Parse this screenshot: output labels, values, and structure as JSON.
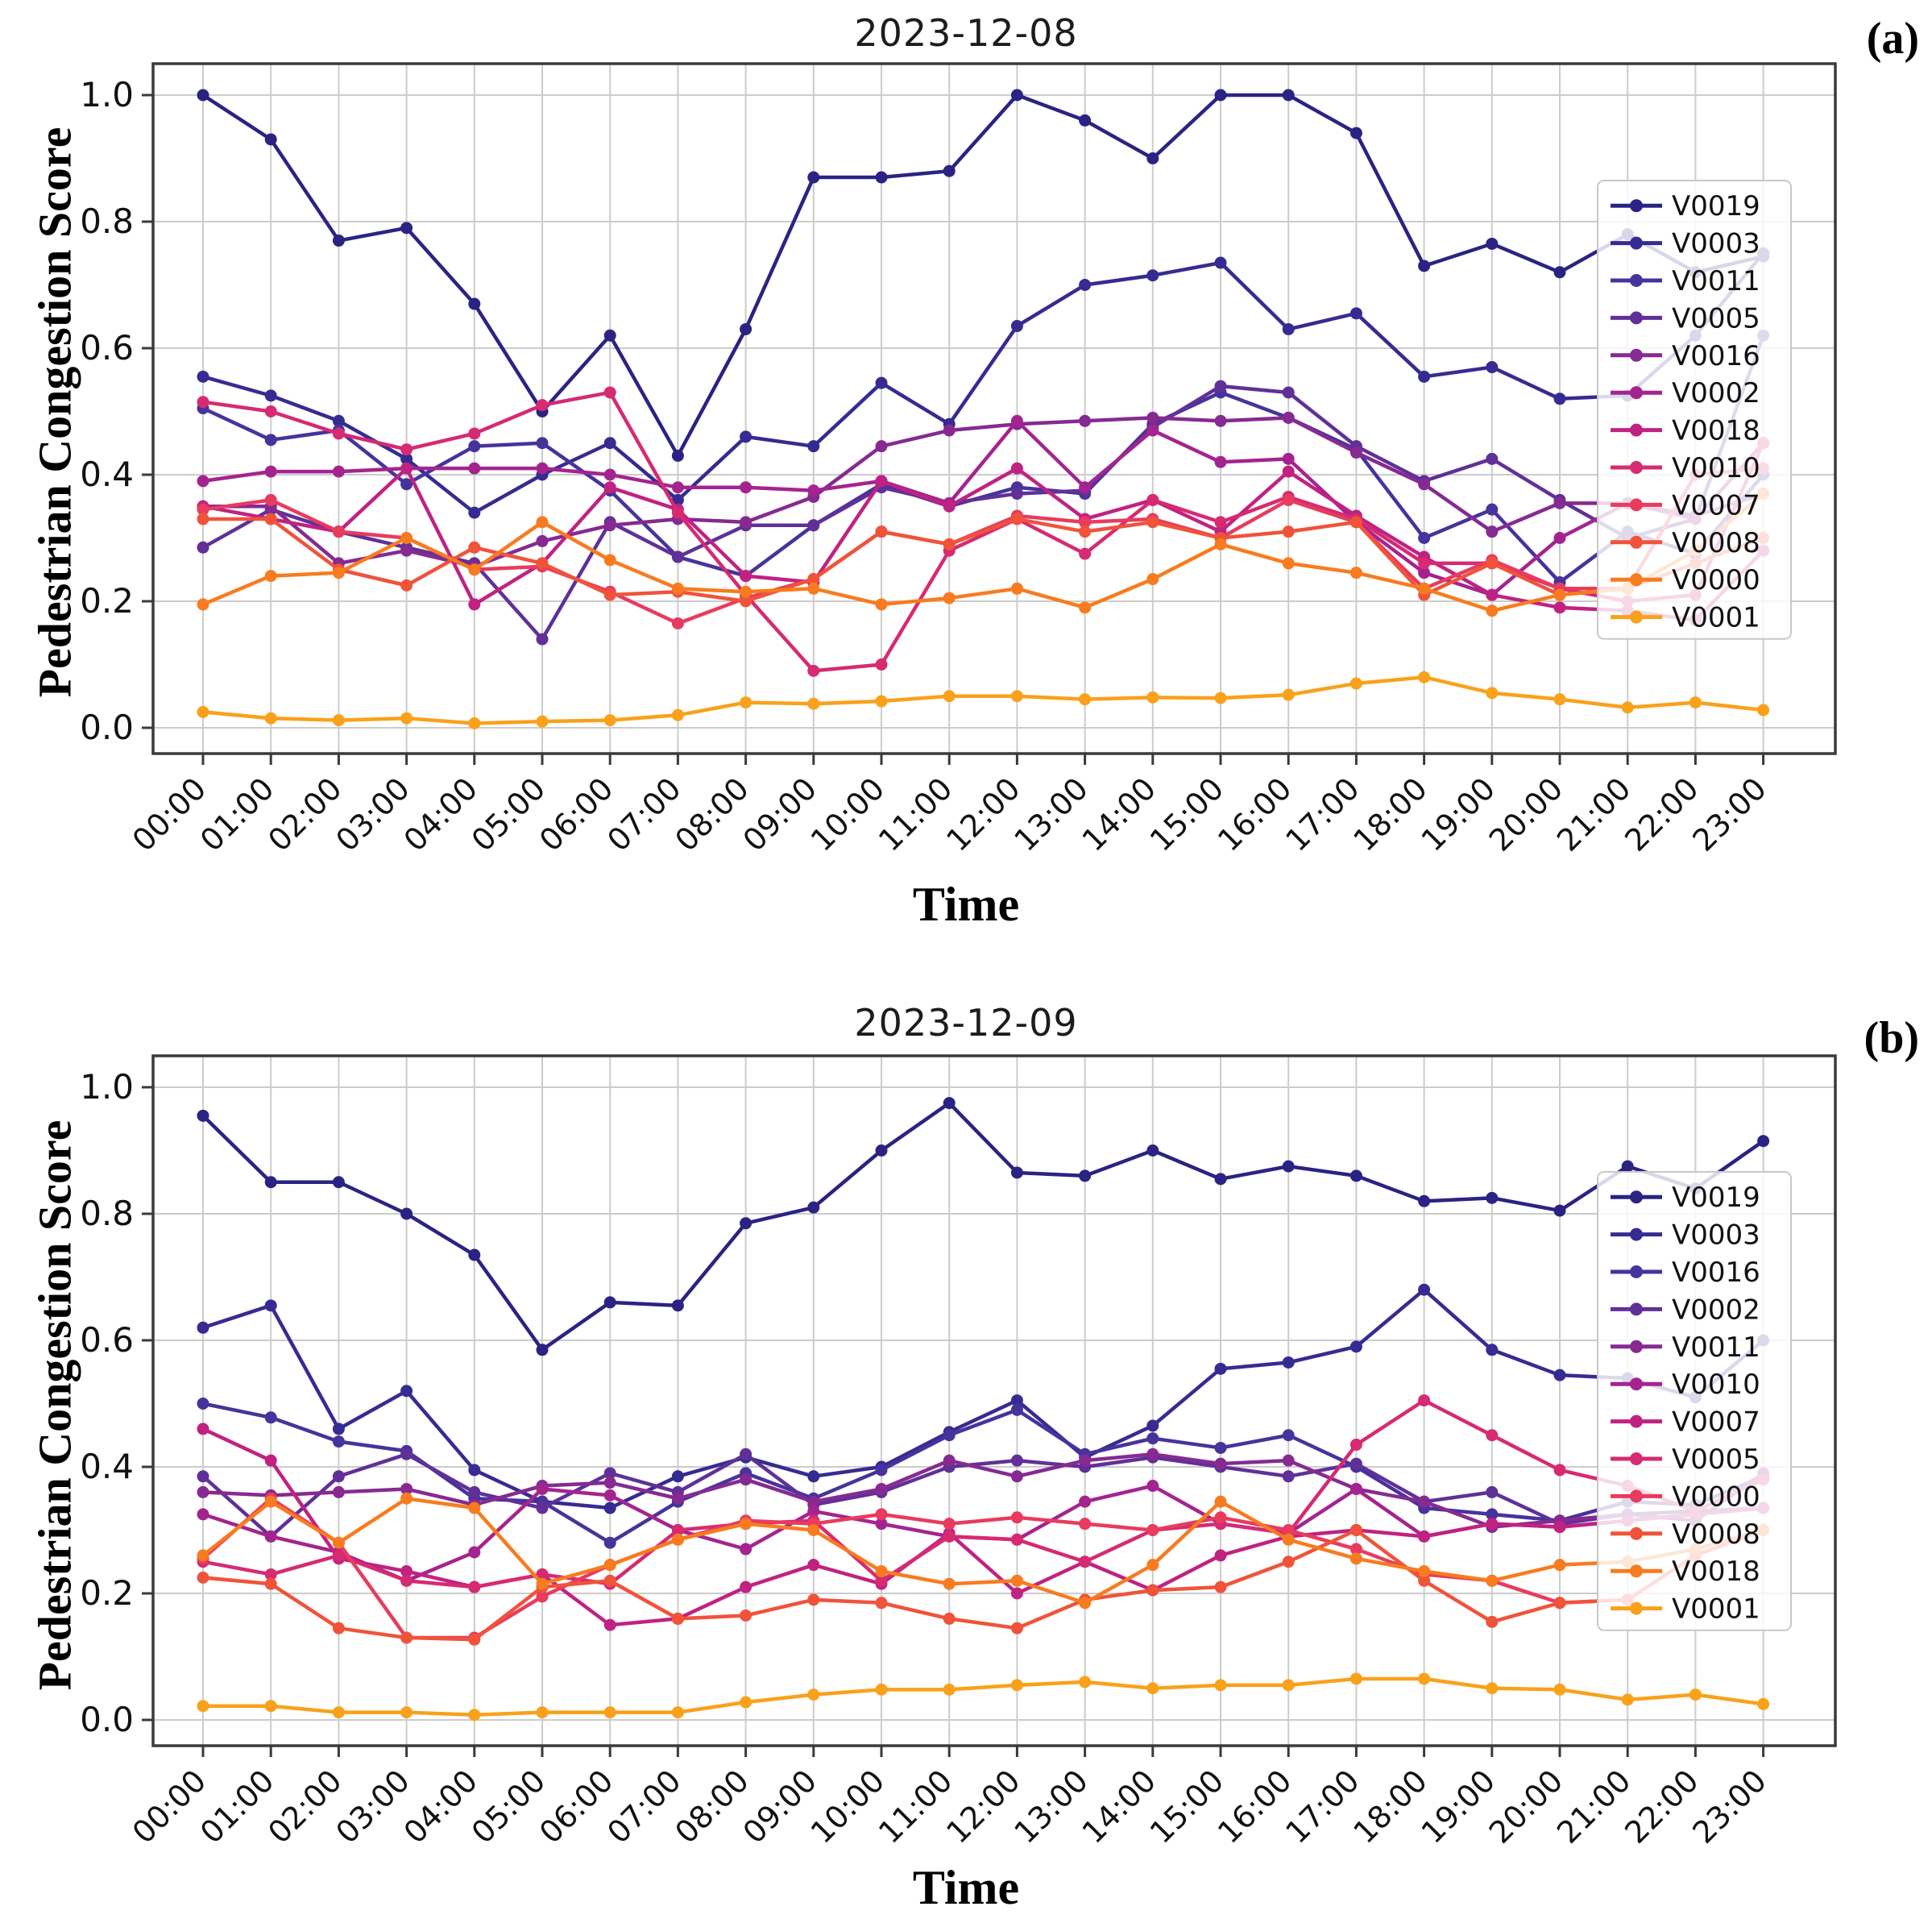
{
  "figure": {
    "background": "#ffffff",
    "grid_color": "#cccccc",
    "spine_color": "#3a3a3a",
    "text_color": "#1c1c1c",
    "legend_bg_alpha": 0.82
  },
  "chart_data": [
    {
      "type": "line",
      "panel_label": "(a)",
      "title": "2023-12-08",
      "xlabel": "Time",
      "ylabel": "Pedestrian Congestion Score",
      "x_ticks": [
        "00:00",
        "01:00",
        "02:00",
        "03:00",
        "04:00",
        "05:00",
        "06:00",
        "07:00",
        "08:00",
        "09:00",
        "10:00",
        "11:00",
        "12:00",
        "13:00",
        "14:00",
        "15:00",
        "16:00",
        "17:00",
        "18:00",
        "19:00",
        "20:00",
        "21:00",
        "22:00",
        "23:00"
      ],
      "y_ticks": [
        "0.0",
        "0.2",
        "0.4",
        "0.6",
        "0.8",
        "1.0"
      ],
      "ylim": [
        -0.05,
        1.05
      ],
      "grid": true,
      "legend_position": "center-right",
      "series": [
        {
          "name": "V0019",
          "color": "#2b2383",
          "values": [
            1.0,
            0.93,
            0.77,
            0.79,
            0.67,
            0.5,
            0.62,
            0.43,
            0.63,
            0.87,
            0.87,
            0.88,
            1.0,
            0.96,
            0.9,
            1.0,
            1.0,
            0.94,
            0.73,
            0.765,
            0.72,
            0.78,
            0.72,
            0.745
          ]
        },
        {
          "name": "V0003",
          "color": "#362b92",
          "values": [
            0.555,
            0.525,
            0.485,
            0.425,
            0.34,
            0.4,
            0.45,
            0.36,
            0.46,
            0.445,
            0.545,
            0.48,
            0.635,
            0.7,
            0.715,
            0.735,
            0.63,
            0.655,
            0.555,
            0.57,
            0.52,
            0.525,
            0.62,
            0.75
          ]
        },
        {
          "name": "V0011",
          "color": "#47339c",
          "values": [
            0.505,
            0.455,
            0.47,
            0.385,
            0.445,
            0.45,
            0.375,
            0.27,
            0.24,
            0.32,
            0.385,
            0.35,
            0.38,
            0.37,
            0.48,
            0.53,
            0.49,
            0.44,
            0.3,
            0.345,
            0.23,
            0.31,
            0.275,
            0.4
          ]
        },
        {
          "name": "V0005",
          "color": "#603098",
          "values": [
            0.285,
            0.345,
            0.31,
            0.285,
            0.26,
            0.14,
            0.325,
            0.27,
            0.32,
            0.32,
            0.38,
            0.355,
            0.37,
            0.375,
            0.475,
            0.54,
            0.53,
            0.445,
            0.39,
            0.425,
            0.36,
            0.3,
            0.33,
            0.62
          ]
        },
        {
          "name": "V0016",
          "color": "#862a91",
          "values": [
            0.35,
            0.35,
            0.26,
            0.28,
            0.255,
            0.295,
            0.32,
            0.33,
            0.325,
            0.365,
            0.445,
            0.47,
            0.48,
            0.485,
            0.49,
            0.485,
            0.49,
            0.435,
            0.385,
            0.31,
            0.355,
            0.355,
            0.335,
            0.37
          ]
        },
        {
          "name": "V0002",
          "color": "#a4248f",
          "values": [
            0.39,
            0.405,
            0.405,
            0.41,
            0.41,
            0.41,
            0.4,
            0.38,
            0.38,
            0.375,
            0.39,
            0.355,
            0.485,
            0.38,
            0.47,
            0.42,
            0.425,
            0.325,
            0.245,
            0.21,
            0.3,
            0.355,
            0.33,
            0.45
          ]
        },
        {
          "name": "V0018",
          "color": "#c02282",
          "values": [
            0.35,
            0.33,
            0.31,
            0.41,
            0.195,
            0.26,
            0.38,
            0.345,
            0.24,
            0.23,
            0.39,
            0.35,
            0.41,
            0.33,
            0.36,
            0.31,
            0.405,
            0.335,
            0.27,
            0.21,
            0.19,
            0.185,
            0.17,
            0.28
          ]
        },
        {
          "name": "V0010",
          "color": "#d62a72",
          "values": [
            0.515,
            0.5,
            0.465,
            0.44,
            0.465,
            0.51,
            0.53,
            0.34,
            0.21,
            0.09,
            0.1,
            0.28,
            0.33,
            0.275,
            0.36,
            0.325,
            0.365,
            0.33,
            0.26,
            0.26,
            0.22,
            0.2,
            0.21,
            0.45
          ]
        },
        {
          "name": "V0007",
          "color": "#e83b5e",
          "values": [
            0.345,
            0.36,
            0.31,
            0.3,
            0.25,
            0.255,
            0.215,
            0.165,
            0.205,
            0.235,
            0.31,
            0.29,
            0.335,
            0.325,
            0.33,
            0.3,
            0.36,
            0.325,
            0.22,
            0.265,
            0.22,
            0.22,
            0.4,
            0.41
          ]
        },
        {
          "name": "V0008",
          "color": "#f0533a",
          "values": [
            0.33,
            0.33,
            0.25,
            0.225,
            0.285,
            0.26,
            0.21,
            0.215,
            0.2,
            0.235,
            0.31,
            0.29,
            0.33,
            0.31,
            0.325,
            0.3,
            0.31,
            0.325,
            0.21,
            0.26,
            0.21,
            0.22,
            0.26,
            0.3
          ]
        },
        {
          "name": "V0000",
          "color": "#f87b1f",
          "values": [
            0.195,
            0.24,
            0.245,
            0.3,
            0.25,
            0.325,
            0.265,
            0.22,
            0.215,
            0.22,
            0.195,
            0.205,
            0.22,
            0.19,
            0.235,
            0.29,
            0.26,
            0.245,
            0.22,
            0.185,
            0.21,
            0.22,
            0.28,
            0.37
          ]
        },
        {
          "name": "V0001",
          "color": "#f9a11b",
          "values": [
            0.025,
            0.015,
            0.012,
            0.015,
            0.007,
            0.01,
            0.012,
            0.02,
            0.04,
            0.038,
            0.042,
            0.05,
            0.05,
            0.045,
            0.048,
            0.047,
            0.052,
            0.07,
            0.08,
            0.055,
            0.045,
            0.032,
            0.04,
            0.028
          ]
        }
      ]
    },
    {
      "type": "line",
      "panel_label": "(b)",
      "title": "2023-12-09",
      "xlabel": "Time",
      "ylabel": "Pedestrian Congestion Score",
      "x_ticks": [
        "00:00",
        "01:00",
        "02:00",
        "03:00",
        "04:00",
        "05:00",
        "06:00",
        "07:00",
        "08:00",
        "09:00",
        "10:00",
        "11:00",
        "12:00",
        "13:00",
        "14:00",
        "15:00",
        "16:00",
        "17:00",
        "18:00",
        "19:00",
        "20:00",
        "21:00",
        "22:00",
        "23:00"
      ],
      "y_ticks": [
        "0.0",
        "0.2",
        "0.4",
        "0.6",
        "0.8",
        "1.0"
      ],
      "ylim": [
        -0.05,
        1.05
      ],
      "grid": true,
      "legend_position": "center-right",
      "series": [
        {
          "name": "V0019",
          "color": "#2b2383",
          "values": [
            0.955,
            0.85,
            0.85,
            0.8,
            0.735,
            0.585,
            0.66,
            0.655,
            0.785,
            0.81,
            0.9,
            0.975,
            0.865,
            0.86,
            0.9,
            0.855,
            0.875,
            0.86,
            0.82,
            0.825,
            0.805,
            0.875,
            0.84,
            0.915
          ]
        },
        {
          "name": "V0003",
          "color": "#362b92",
          "values": [
            0.62,
            0.655,
            0.46,
            0.52,
            0.395,
            0.345,
            0.335,
            0.385,
            0.415,
            0.385,
            0.4,
            0.455,
            0.505,
            0.415,
            0.465,
            0.555,
            0.565,
            0.59,
            0.68,
            0.585,
            0.545,
            0.54,
            0.51,
            0.6
          ]
        },
        {
          "name": "V0016",
          "color": "#47339c",
          "values": [
            0.5,
            0.478,
            0.44,
            0.425,
            0.35,
            0.345,
            0.28,
            0.345,
            0.39,
            0.35,
            0.395,
            0.45,
            0.49,
            0.42,
            0.445,
            0.43,
            0.45,
            0.4,
            0.335,
            0.325,
            0.315,
            0.345,
            0.34,
            0.385
          ]
        },
        {
          "name": "V0002",
          "color": "#603098",
          "values": [
            0.385,
            0.29,
            0.385,
            0.42,
            0.36,
            0.335,
            0.39,
            0.36,
            0.42,
            0.34,
            0.36,
            0.4,
            0.41,
            0.4,
            0.415,
            0.4,
            0.385,
            0.405,
            0.345,
            0.36,
            0.31,
            0.325,
            0.33,
            0.335
          ]
        },
        {
          "name": "V0011",
          "color": "#862a91",
          "values": [
            0.36,
            0.355,
            0.36,
            0.365,
            0.34,
            0.37,
            0.375,
            0.35,
            0.38,
            0.345,
            0.365,
            0.41,
            0.385,
            0.41,
            0.42,
            0.405,
            0.41,
            0.365,
            0.345,
            0.305,
            0.315,
            0.325,
            0.315,
            0.39
          ]
        },
        {
          "name": "V0010",
          "color": "#a4248f",
          "values": [
            0.325,
            0.29,
            0.265,
            0.22,
            0.265,
            0.365,
            0.355,
            0.3,
            0.27,
            0.33,
            0.31,
            0.29,
            0.285,
            0.345,
            0.37,
            0.31,
            0.295,
            0.365,
            0.29,
            0.31,
            0.305,
            0.315,
            0.325,
            0.335
          ]
        },
        {
          "name": "V0007",
          "color": "#c02282",
          "values": [
            0.46,
            0.41,
            0.255,
            0.235,
            0.21,
            0.23,
            0.15,
            0.16,
            0.21,
            0.245,
            0.215,
            0.295,
            0.2,
            0.25,
            0.205,
            0.26,
            0.29,
            0.3,
            0.29,
            0.31,
            0.305,
            0.315,
            0.325,
            0.335
          ]
        },
        {
          "name": "V0005",
          "color": "#d62a72",
          "values": [
            0.25,
            0.23,
            0.26,
            0.22,
            0.21,
            0.23,
            0.215,
            0.3,
            0.31,
            0.315,
            0.22,
            0.29,
            0.285,
            0.25,
            0.3,
            0.31,
            0.295,
            0.435,
            0.505,
            0.45,
            0.395,
            0.37,
            0.33,
            0.38
          ]
        },
        {
          "name": "V0000",
          "color": "#e83b5e",
          "values": [
            0.255,
            0.35,
            0.28,
            0.13,
            0.13,
            0.195,
            0.245,
            0.285,
            0.315,
            0.31,
            0.325,
            0.31,
            0.32,
            0.31,
            0.3,
            0.32,
            0.3,
            0.27,
            0.23,
            0.22,
            0.185,
            0.19,
            0.26,
            0.3
          ]
        },
        {
          "name": "V0008",
          "color": "#f0533a",
          "values": [
            0.225,
            0.215,
            0.145,
            0.13,
            0.127,
            0.21,
            0.22,
            0.16,
            0.165,
            0.19,
            0.185,
            0.16,
            0.145,
            0.19,
            0.205,
            0.21,
            0.25,
            0.3,
            0.22,
            0.155,
            0.185,
            0.19,
            0.26,
            0.3
          ]
        },
        {
          "name": "V0018",
          "color": "#f87b1f",
          "values": [
            0.26,
            0.345,
            0.28,
            0.35,
            0.335,
            0.215,
            0.245,
            0.285,
            0.31,
            0.3,
            0.235,
            0.215,
            0.22,
            0.185,
            0.245,
            0.345,
            0.285,
            0.255,
            0.235,
            0.22,
            0.245,
            0.25,
            0.27,
            0.3
          ]
        },
        {
          "name": "V0001",
          "color": "#f9a11b",
          "values": [
            0.022,
            0.022,
            0.012,
            0.012,
            0.008,
            0.012,
            0.012,
            0.012,
            0.028,
            0.04,
            0.048,
            0.048,
            0.055,
            0.06,
            0.05,
            0.055,
            0.055,
            0.065,
            0.065,
            0.05,
            0.048,
            0.032,
            0.04,
            0.025
          ]
        }
      ]
    }
  ]
}
